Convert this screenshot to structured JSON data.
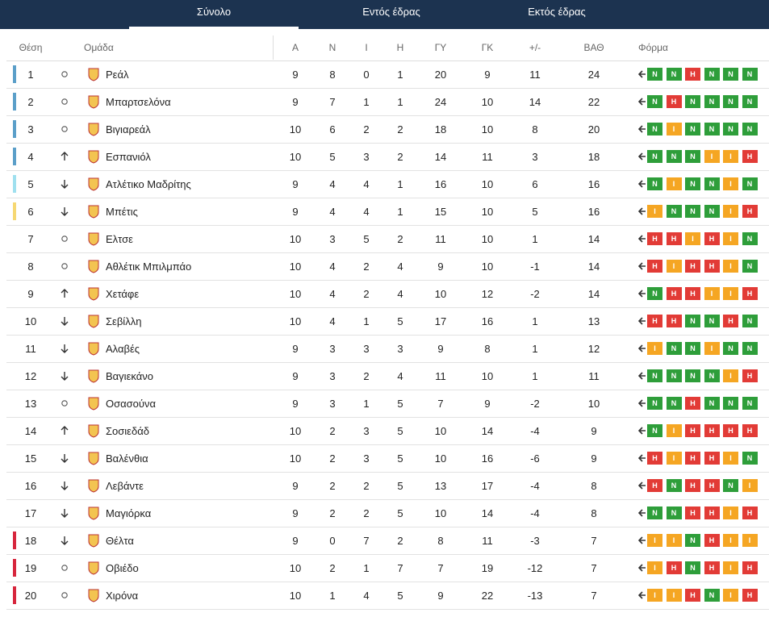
{
  "tabs": [
    "Σύνολο",
    "Εντός έδρας",
    "Εκτός έδρας"
  ],
  "header": [
    "Θέση",
    "Ομάδα",
    "Α",
    "Ν",
    "Ι",
    "Η",
    "ΓΥ",
    "ΓΚ",
    "+/-",
    "ΒΑΘ",
    "Φόρμα"
  ],
  "form_colors": {
    "Ν": "#2e9e3a",
    "Ι": "#f5a623",
    "Η": "#e23b36"
  },
  "rows": [
    {
      "pos": 1,
      "move": "same",
      "zone": "#5b9fc9",
      "team": "Ρεάλ",
      "stats": [
        9,
        8,
        0,
        1,
        20,
        9,
        11,
        24
      ],
      "form": [
        "Ν",
        "Ν",
        "Η",
        "Ν",
        "Ν",
        "Ν"
      ]
    },
    {
      "pos": 2,
      "move": "same",
      "zone": "#5b9fc9",
      "team": "Μπαρτσελόνα",
      "stats": [
        9,
        7,
        1,
        1,
        24,
        10,
        14,
        22
      ],
      "form": [
        "Ν",
        "Η",
        "Ν",
        "Ν",
        "Ν",
        "Ν"
      ]
    },
    {
      "pos": 3,
      "move": "same",
      "zone": "#5b9fc9",
      "team": "Βιγιαρεάλ",
      "stats": [
        10,
        6,
        2,
        2,
        18,
        10,
        8,
        20
      ],
      "form": [
        "Ν",
        "Ι",
        "Ν",
        "Ν",
        "Ν",
        "Ν"
      ]
    },
    {
      "pos": 4,
      "move": "up",
      "zone": "#5b9fc9",
      "team": "Εσπανιόλ",
      "stats": [
        10,
        5,
        3,
        2,
        14,
        11,
        3,
        18
      ],
      "form": [
        "Ν",
        "Ν",
        "Ν",
        "Ι",
        "Ι",
        "Η"
      ]
    },
    {
      "pos": 5,
      "move": "down",
      "zone": "#9fe0ef",
      "team": "Ατλέτικο Μαδρίτης",
      "stats": [
        9,
        4,
        4,
        1,
        16,
        10,
        6,
        16
      ],
      "form": [
        "Ν",
        "Ι",
        "Ν",
        "Ν",
        "Ι",
        "Ν"
      ]
    },
    {
      "pos": 6,
      "move": "down",
      "zone": "#f6d873",
      "team": "Μπέτις",
      "stats": [
        9,
        4,
        4,
        1,
        15,
        10,
        5,
        16
      ],
      "form": [
        "Ι",
        "Ν",
        "Ν",
        "Ν",
        "Ι",
        "Η"
      ]
    },
    {
      "pos": 7,
      "move": "same",
      "zone": null,
      "team": "Ελτσε",
      "stats": [
        10,
        3,
        5,
        2,
        11,
        10,
        1,
        14
      ],
      "form": [
        "Η",
        "Η",
        "Ι",
        "Η",
        "Ι",
        "Ν"
      ]
    },
    {
      "pos": 8,
      "move": "same",
      "zone": null,
      "team": "Αθλέτικ Μπιλμπάο",
      "stats": [
        10,
        4,
        2,
        4,
        9,
        10,
        -1,
        14
      ],
      "form": [
        "Η",
        "Ι",
        "Η",
        "Η",
        "Ι",
        "Ν"
      ]
    },
    {
      "pos": 9,
      "move": "up",
      "zone": null,
      "team": "Χετάφε",
      "stats": [
        10,
        4,
        2,
        4,
        10,
        12,
        -2,
        14
      ],
      "form": [
        "Ν",
        "Η",
        "Η",
        "Ι",
        "Ι",
        "Η"
      ]
    },
    {
      "pos": 10,
      "move": "down",
      "zone": null,
      "team": "Σεβίλλη",
      "stats": [
        10,
        4,
        1,
        5,
        17,
        16,
        1,
        13
      ],
      "form": [
        "Η",
        "Η",
        "Ν",
        "Ν",
        "Η",
        "Ν"
      ]
    },
    {
      "pos": 11,
      "move": "down",
      "zone": null,
      "team": "Αλαβές",
      "stats": [
        9,
        3,
        3,
        3,
        9,
        8,
        1,
        12
      ],
      "form": [
        "Ι",
        "Ν",
        "Ν",
        "Ι",
        "Ν",
        "Ν"
      ]
    },
    {
      "pos": 12,
      "move": "down",
      "zone": null,
      "team": "Βαγιεκάνο",
      "stats": [
        9,
        3,
        2,
        4,
        11,
        10,
        1,
        11
      ],
      "form": [
        "Ν",
        "Ν",
        "Ν",
        "Ν",
        "Ι",
        "Η"
      ]
    },
    {
      "pos": 13,
      "move": "same",
      "zone": null,
      "team": "Οσασούνα",
      "stats": [
        9,
        3,
        1,
        5,
        7,
        9,
        -2,
        10
      ],
      "form": [
        "Ν",
        "Ν",
        "Η",
        "Ν",
        "Ν",
        "Ν"
      ]
    },
    {
      "pos": 14,
      "move": "up",
      "zone": null,
      "team": "Σοσιεδάδ",
      "stats": [
        10,
        2,
        3,
        5,
        10,
        14,
        -4,
        9
      ],
      "form": [
        "Ν",
        "Ι",
        "Η",
        "Η",
        "Η",
        "Η"
      ]
    },
    {
      "pos": 15,
      "move": "down",
      "zone": null,
      "team": "Βαλένθια",
      "stats": [
        10,
        2,
        3,
        5,
        10,
        16,
        -6,
        9
      ],
      "form": [
        "Η",
        "Ι",
        "Η",
        "Η",
        "Ι",
        "Ν"
      ]
    },
    {
      "pos": 16,
      "move": "down",
      "zone": null,
      "team": "Λεβάντε",
      "stats": [
        9,
        2,
        2,
        5,
        13,
        17,
        -4,
        8
      ],
      "form": [
        "Η",
        "Ν",
        "Η",
        "Η",
        "Ν",
        "Ι"
      ]
    },
    {
      "pos": 17,
      "move": "down",
      "zone": null,
      "team": "Μαγιόρκα",
      "stats": [
        9,
        2,
        2,
        5,
        10,
        14,
        -4,
        8
      ],
      "form": [
        "Ν",
        "Ν",
        "Η",
        "Η",
        "Ι",
        "Η"
      ]
    },
    {
      "pos": 18,
      "move": "down",
      "zone": "#d7263d",
      "team": "Θέλτα",
      "stats": [
        9,
        0,
        7,
        2,
        8,
        11,
        -3,
        7
      ],
      "form": [
        "Ι",
        "Ι",
        "Ν",
        "Η",
        "Ι",
        "Ι"
      ]
    },
    {
      "pos": 19,
      "move": "same",
      "zone": "#d7263d",
      "team": "Οβιέδο",
      "stats": [
        10,
        2,
        1,
        7,
        7,
        19,
        -12,
        7
      ],
      "form": [
        "Ι",
        "Η",
        "Ν",
        "Η",
        "Ι",
        "Η"
      ]
    },
    {
      "pos": 20,
      "move": "same",
      "zone": "#d7263d",
      "team": "Χιρόνα",
      "stats": [
        10,
        1,
        4,
        5,
        9,
        22,
        -13,
        7
      ],
      "form": [
        "Ι",
        "Ι",
        "Η",
        "Ν",
        "Ι",
        "Η"
      ]
    }
  ]
}
